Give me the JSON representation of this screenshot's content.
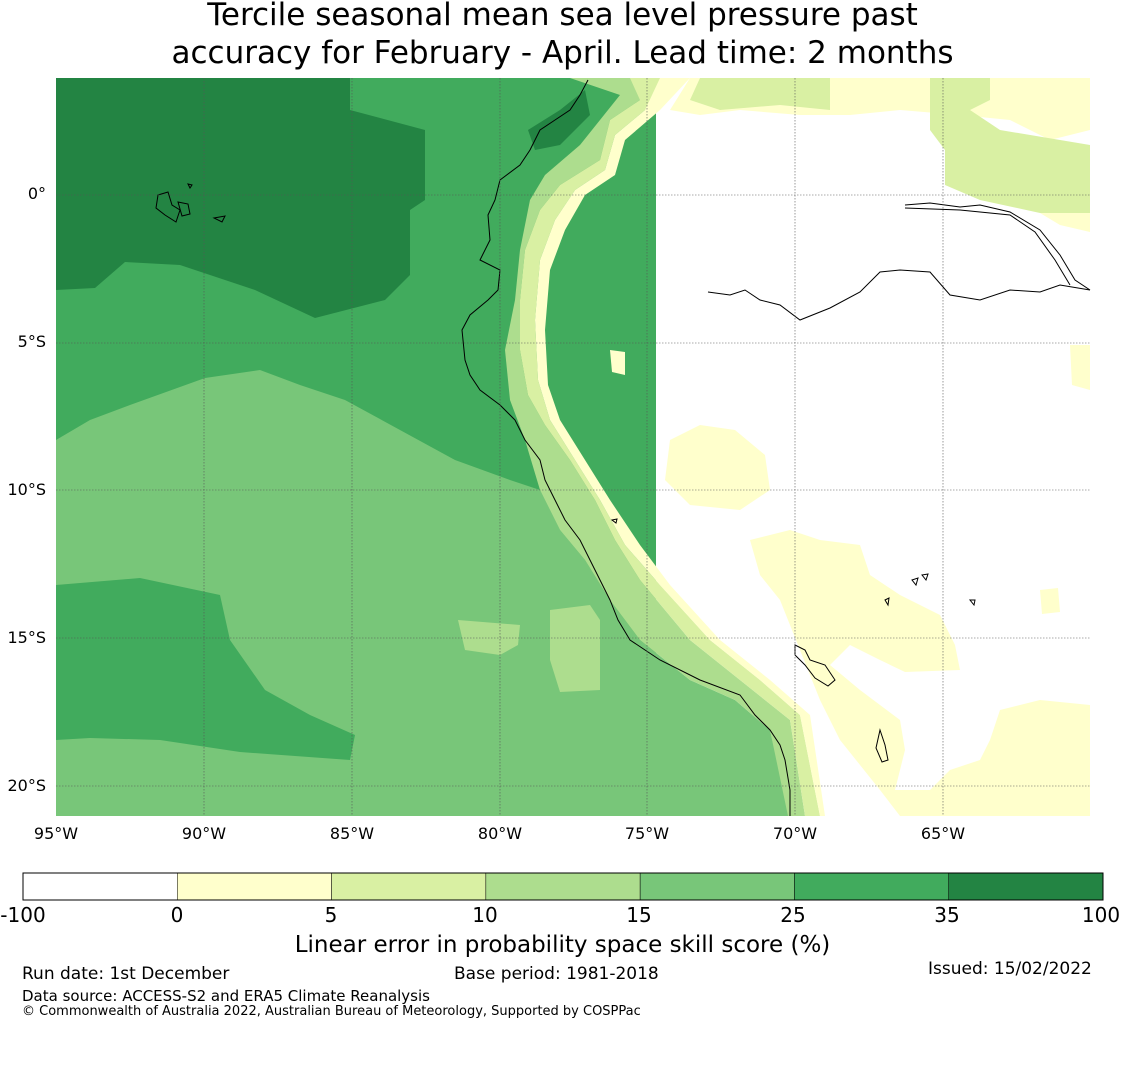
{
  "title": {
    "line1": "Tercile seasonal mean sea level pressure past",
    "line2": "accuracy for February - April. Lead time: 2 months"
  },
  "map": {
    "lat_labels": [
      "0°",
      "5°S",
      "10°S",
      "15°S",
      "20°S"
    ],
    "lon_labels": [
      "95°W",
      "90°W",
      "85°W",
      "80°W",
      "75°W",
      "70°W",
      "65°W"
    ],
    "lon_range": [
      -95,
      -60
    ],
    "lat_range": [
      -21,
      4
    ],
    "grid_color": "#555555"
  },
  "colorbar": {
    "bounds": [
      "-100",
      "0",
      "5",
      "10",
      "15",
      "25",
      "35",
      "100"
    ],
    "colors": [
      "#ffffff",
      "#ffffcc",
      "#d9f0a3",
      "#addd8e",
      "#78c679",
      "#41ab5d",
      "#238443"
    ],
    "label": "Linear error in probability space skill score (%)"
  },
  "footer": {
    "run_date": "Run date: 1st December",
    "base_period": "Base period: 1981-2018",
    "issued": "Issued: 15/02/2022",
    "data_source": "Data source: ACCESS-S2 and ERA5 Climate Reanalysis",
    "copyright": "© Commonwealth of Australia 2022, Australian Bureau of Meteorology, Supported by COSPPac"
  }
}
